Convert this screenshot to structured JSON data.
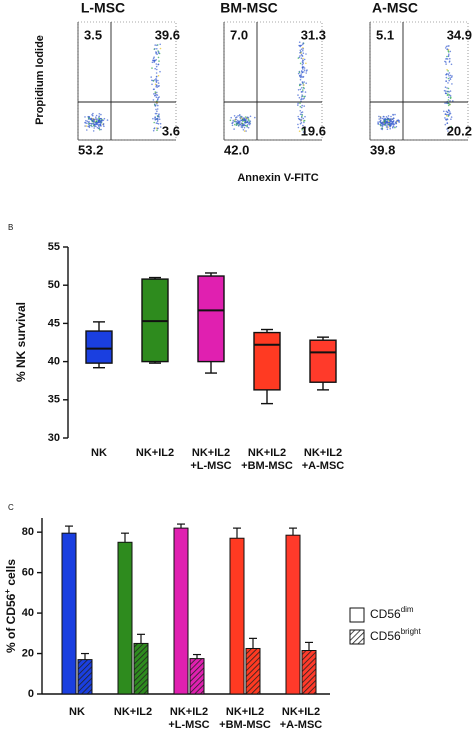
{
  "flow_cytometry": {
    "y_label": "Propidium Iodide",
    "x_label": "Annexin V-FITC",
    "plots": [
      {
        "title": "L-MSC",
        "upper_left": "3.5",
        "upper_right": "39.6",
        "lower_right": "3.6",
        "lower_left": "53.2"
      },
      {
        "title": "BM-MSC",
        "upper_left": "7.0",
        "upper_right": "31.3",
        "lower_right": "19.6",
        "lower_left": "42.0"
      },
      {
        "title": "A-MSC",
        "upper_left": "5.1",
        "upper_right": "34.9",
        "lower_right": "20.2",
        "lower_left": "39.8"
      }
    ]
  },
  "chart_data": [
    {
      "type": "box",
      "label": "B",
      "y_label": "% NK survival",
      "categories": [
        [
          "NK"
        ],
        [
          "NK+IL2"
        ],
        [
          "NK+IL2",
          "+L-MSC"
        ],
        [
          "NK+IL2",
          "+BM-MSC"
        ],
        [
          "NK+IL2",
          "+A-MSC"
        ]
      ],
      "boxes": [
        {
          "min": 39.2,
          "q1": 39.8,
          "median": 41.7,
          "q3": 44.0,
          "max": 45.2,
          "color": "#1a3fe0"
        },
        {
          "min": 39.8,
          "q1": 40.0,
          "median": 45.3,
          "q3": 50.8,
          "max": 51.0,
          "color": "#2e8b1e"
        },
        {
          "min": 38.5,
          "q1": 40.0,
          "median": 46.7,
          "q3": 51.2,
          "max": 51.6,
          "color": "#e020b0"
        },
        {
          "min": 34.5,
          "q1": 36.3,
          "median": 42.2,
          "q3": 43.8,
          "max": 44.2,
          "color": "#ff3a22"
        },
        {
          "min": 36.3,
          "q1": 37.3,
          "median": 41.2,
          "q3": 42.8,
          "max": 43.2,
          "color": "#ff3a2a"
        }
      ],
      "ylim": [
        30,
        55
      ],
      "yticks": [
        30,
        35,
        40,
        45,
        50,
        55
      ]
    },
    {
      "type": "bar",
      "label": "C",
      "y_label": [
        "% of CD56",
        "+",
        " cells"
      ],
      "categories": [
        [
          "NK"
        ],
        [
          "NK+IL2"
        ],
        [
          "NK+IL2",
          "+L-MSC"
        ],
        [
          "NK+IL2",
          "+BM-MSC"
        ],
        [
          "NK+IL2",
          "+A-MSC"
        ]
      ],
      "colors": [
        "#1a3fe0",
        "#2e8b1e",
        "#e020b0",
        "#ff3a22",
        "#ff3a2a"
      ],
      "series": [
        {
          "name": "CD56",
          "name_sup": "dim",
          "pattern": "solid",
          "values": [
            79.5,
            75,
            82,
            77,
            78.5
          ],
          "errors": [
            3.5,
            4.5,
            2,
            5,
            3.5
          ]
        },
        {
          "name": "CD56",
          "name_sup": "bright",
          "pattern": "hatch",
          "values": [
            17,
            25,
            17.5,
            22.5,
            21.5
          ],
          "errors": [
            3,
            4.5,
            2,
            5,
            4
          ]
        }
      ],
      "ylim": [
        0,
        87
      ],
      "yticks": [
        0,
        20,
        40,
        60,
        80
      ]
    }
  ]
}
